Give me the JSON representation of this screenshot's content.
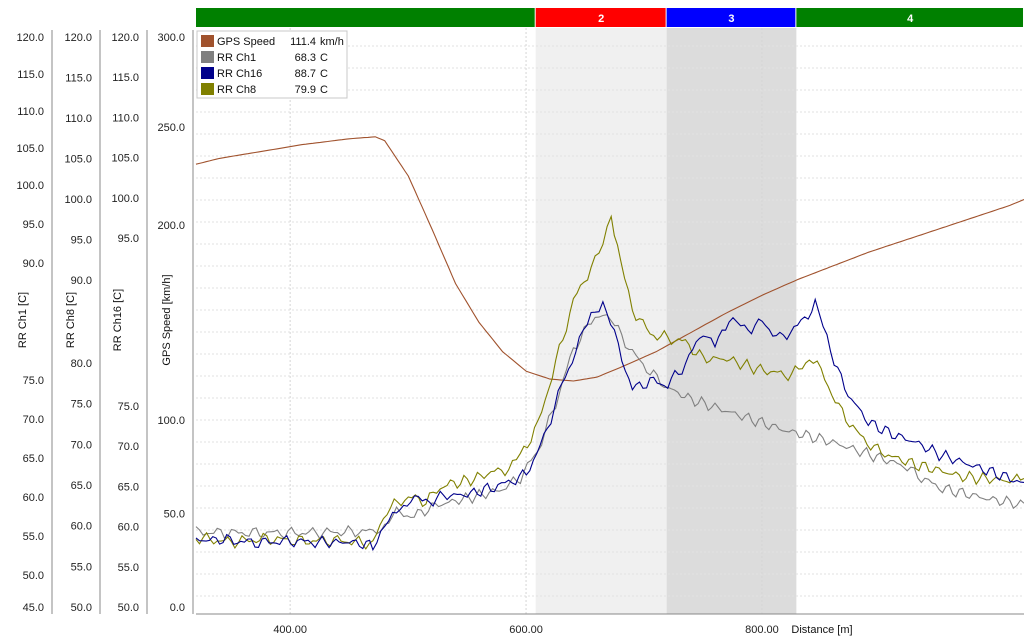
{
  "chart_data": {
    "type": "line",
    "xlabel": "Distance [m]",
    "x_ticks": [
      400,
      600,
      800
    ],
    "x_tick_labels": [
      "400.00",
      "600.00",
      "800.00"
    ],
    "xlim": [
      310,
      1012
    ],
    "sectors": [
      {
        "label": "",
        "x_start": 310,
        "x_end": 598,
        "color": "#008000",
        "shade": ""
      },
      {
        "label": "2",
        "x_start": 598,
        "x_end": 709,
        "color": "#ff0000",
        "shade": "#f0f0f0"
      },
      {
        "label": "3",
        "x_start": 709,
        "x_end": 819,
        "color": "#0000ff",
        "shade": "#dcdcdc"
      },
      {
        "label": "4",
        "x_start": 819,
        "x_end": 1012,
        "color": "#008000",
        "shade": ""
      }
    ],
    "axes": [
      {
        "label": "RR Ch1 [C]",
        "tick_labels": [
          "120.0",
          "115.0",
          "110.0",
          "105.0",
          "100.0",
          "95.0",
          "90.0",
          "75.0",
          "70.0",
          "65.0",
          "60.0",
          "55.0",
          "50.0",
          "45.0"
        ],
        "tick_values": [
          120,
          115,
          110,
          105,
          100,
          95,
          90,
          75,
          70,
          65,
          60,
          55,
          50,
          45
        ],
        "range": [
          45,
          120
        ]
      },
      {
        "label": "RR Ch8 [C]",
        "tick_labels": [
          "120.0",
          "115.0",
          "110.0",
          "105.0",
          "100.0",
          "95.0",
          "90.0",
          "80.0",
          "75.0",
          "70.0",
          "65.0",
          "60.0",
          "55.0",
          "50.0"
        ],
        "tick_values": [
          120,
          115,
          110,
          105,
          100,
          95,
          90,
          80,
          75,
          70,
          65,
          60,
          55,
          50
        ],
        "range": [
          50,
          120
        ]
      },
      {
        "label": "RR Ch16 [C]",
        "tick_labels": [
          "120.0",
          "115.0",
          "110.0",
          "105.0",
          "100.0",
          "95.0",
          "75.0",
          "70.0",
          "65.0",
          "60.0",
          "55.0",
          "50.0"
        ],
        "tick_values": [
          120,
          115,
          110,
          105,
          100,
          95,
          75,
          70,
          65,
          60,
          55,
          50
        ],
        "range": [
          50,
          120
        ]
      },
      {
        "label": "GPS Speed [km/h]",
        "tick_labels": [
          "300.0",
          "250.0",
          "200.0",
          "100.0",
          "50.0",
          "0.0"
        ],
        "tick_values": [
          300,
          250,
          200,
          100,
          50,
          0
        ],
        "range": [
          0,
          300
        ]
      }
    ],
    "legend": [
      {
        "name": "GPS Speed",
        "value": "111.4",
        "unit": "km/h",
        "color": "#a0522d"
      },
      {
        "name": "RR Ch1",
        "value": "68.3",
        "unit": "C",
        "color": "#808080"
      },
      {
        "name": "RR Ch16",
        "value": "88.7",
        "unit": "C",
        "color": "#00008b"
      },
      {
        "name": "RR Ch8",
        "value": "79.9",
        "unit": "C",
        "color": "#808000"
      }
    ],
    "series": [
      {
        "name": "GPS Speed",
        "axis": 3,
        "color": "#a0522d",
        "points": [
          [
            310,
            231
          ],
          [
            330,
            234
          ],
          [
            360,
            237
          ],
          [
            400,
            241
          ],
          [
            440,
            244
          ],
          [
            462,
            245
          ],
          [
            470,
            243
          ],
          [
            490,
            225
          ],
          [
            510,
            198
          ],
          [
            530,
            170
          ],
          [
            550,
            150
          ],
          [
            570,
            135
          ],
          [
            590,
            125
          ],
          [
            610,
            121
          ],
          [
            630,
            120
          ],
          [
            650,
            122
          ],
          [
            670,
            127
          ],
          [
            700,
            135
          ],
          [
            730,
            145
          ],
          [
            760,
            155
          ],
          [
            790,
            164
          ],
          [
            820,
            172
          ],
          [
            850,
            179
          ],
          [
            880,
            186
          ],
          [
            910,
            192
          ],
          [
            940,
            198
          ],
          [
            970,
            204
          ],
          [
            1000,
            210
          ],
          [
            1012,
            213
          ]
        ]
      },
      {
        "name": "RR Ch1",
        "axis": 0,
        "color": "#808080",
        "points": [
          [
            310,
            55.5
          ],
          [
            340,
            55.4
          ],
          [
            370,
            55.4
          ],
          [
            400,
            55.4
          ],
          [
            430,
            55.5
          ],
          [
            460,
            55.6
          ],
          [
            470,
            56.5
          ],
          [
            480,
            58.0
          ],
          [
            495,
            57.5
          ],
          [
            510,
            58.8
          ],
          [
            530,
            59.5
          ],
          [
            550,
            60.2
          ],
          [
            570,
            61.0
          ],
          [
            585,
            62.5
          ],
          [
            600,
            66.0
          ],
          [
            615,
            72.0
          ],
          [
            630,
            79.0
          ],
          [
            645,
            82.5
          ],
          [
            655,
            84.0
          ],
          [
            665,
            82.0
          ],
          [
            680,
            78.5
          ],
          [
            695,
            76.0
          ],
          [
            710,
            74.0
          ],
          [
            730,
            72.5
          ],
          [
            750,
            71.5
          ],
          [
            770,
            70.5
          ],
          [
            790,
            69.5
          ],
          [
            810,
            68.5
          ],
          [
            830,
            67.8
          ],
          [
            850,
            67.0
          ],
          [
            870,
            66.0
          ],
          [
            890,
            65.0
          ],
          [
            910,
            64.0
          ],
          [
            925,
            62.5
          ],
          [
            940,
            61.2
          ],
          [
            960,
            60.5
          ],
          [
            980,
            59.8
          ],
          [
            1000,
            59.3
          ],
          [
            1012,
            59.2
          ]
        ]
      },
      {
        "name": "RR Ch8",
        "axis": 1,
        "color": "#808000",
        "points": [
          [
            310,
            58.5
          ],
          [
            340,
            58.0
          ],
          [
            370,
            58.4
          ],
          [
            400,
            58.1
          ],
          [
            430,
            58.2
          ],
          [
            460,
            57.8
          ],
          [
            472,
            62.0
          ],
          [
            490,
            63.5
          ],
          [
            505,
            63.0
          ],
          [
            520,
            65.0
          ],
          [
            540,
            65.5
          ],
          [
            560,
            66.5
          ],
          [
            575,
            67.0
          ],
          [
            585,
            68.5
          ],
          [
            600,
            72.5
          ],
          [
            615,
            80.0
          ],
          [
            630,
            87.5
          ],
          [
            645,
            91.5
          ],
          [
            655,
            94.0
          ],
          [
            662,
            98.0
          ],
          [
            670,
            92.0
          ],
          [
            680,
            86.5
          ],
          [
            695,
            83.5
          ],
          [
            710,
            83.0
          ],
          [
            725,
            82.5
          ],
          [
            740,
            80.5
          ],
          [
            760,
            80.5
          ],
          [
            780,
            79.5
          ],
          [
            800,
            78.8
          ],
          [
            815,
            78.5
          ],
          [
            830,
            80.5
          ],
          [
            840,
            79.0
          ],
          [
            855,
            74.5
          ],
          [
            870,
            71.5
          ],
          [
            885,
            69.5
          ],
          [
            900,
            68.5
          ],
          [
            920,
            67.5
          ],
          [
            940,
            66.8
          ],
          [
            960,
            66.0
          ],
          [
            980,
            65.8
          ],
          [
            1000,
            65.5
          ],
          [
            1012,
            65.8
          ]
        ]
      },
      {
        "name": "RR Ch16",
        "axis": 2,
        "color": "#00008b",
        "points": [
          [
            310,
            58.3
          ],
          [
            330,
            58.4
          ],
          [
            360,
            58.0
          ],
          [
            390,
            58.2
          ],
          [
            420,
            58.0
          ],
          [
            440,
            58.1
          ],
          [
            460,
            57.6
          ],
          [
            470,
            60.5
          ],
          [
            480,
            61.5
          ],
          [
            492,
            63.5
          ],
          [
            505,
            63.0
          ],
          [
            520,
            63.8
          ],
          [
            540,
            64.0
          ],
          [
            560,
            64.8
          ],
          [
            575,
            65.5
          ],
          [
            590,
            66.5
          ],
          [
            605,
            71.0
          ],
          [
            620,
            77.5
          ],
          [
            635,
            82.5
          ],
          [
            645,
            86.0
          ],
          [
            655,
            87.5
          ],
          [
            668,
            82.0
          ],
          [
            680,
            77.0
          ],
          [
            695,
            78.0
          ],
          [
            710,
            77.5
          ],
          [
            725,
            80.0
          ],
          [
            740,
            84.0
          ],
          [
            750,
            82.0
          ],
          [
            762,
            85.5
          ],
          [
            775,
            84.0
          ],
          [
            790,
            85.0
          ],
          [
            805,
            83.0
          ],
          [
            820,
            84.5
          ],
          [
            835,
            87.0
          ],
          [
            845,
            83.0
          ],
          [
            860,
            77.0
          ],
          [
            880,
            73.0
          ],
          [
            900,
            71.5
          ],
          [
            920,
            70.5
          ],
          [
            940,
            69.0
          ],
          [
            960,
            68.0
          ],
          [
            980,
            67.0
          ],
          [
            1000,
            66.0
          ],
          [
            1012,
            65.5
          ]
        ]
      }
    ]
  }
}
